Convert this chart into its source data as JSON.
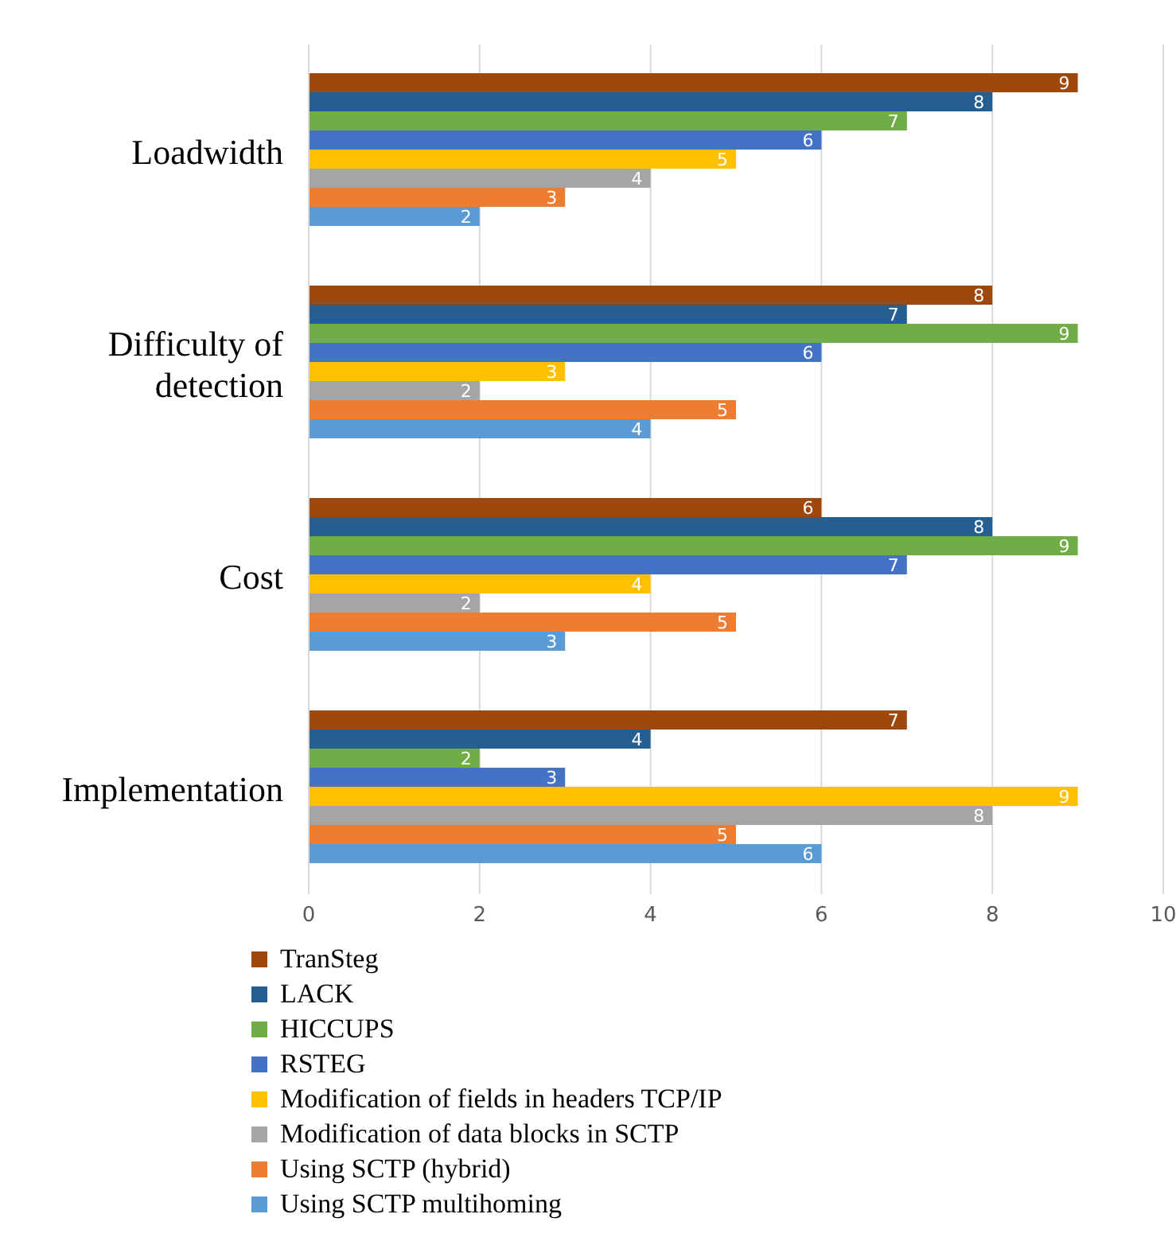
{
  "chart_data": {
    "type": "bar",
    "orientation": "horizontal",
    "categories": [
      "Loadwidth",
      "Difficulty of detection",
      "Cost",
      "Implementation"
    ],
    "series": [
      {
        "name": "TranSteg",
        "color": "#9e480e",
        "values": [
          9,
          8,
          6,
          7
        ]
      },
      {
        "name": "LACK",
        "color": "#255e91",
        "values": [
          8,
          7,
          8,
          4
        ]
      },
      {
        "name": "HICCUPS",
        "color": "#70ad47",
        "values": [
          7,
          9,
          9,
          2
        ]
      },
      {
        "name": "RSTEG",
        "color": "#4472c4",
        "values": [
          6,
          6,
          7,
          3
        ]
      },
      {
        "name": "Modification of fields in headers TCP/IP",
        "color": "#ffc000",
        "values": [
          5,
          3,
          4,
          9
        ]
      },
      {
        "name": "Modification of data blocks in SCTP",
        "color": "#a5a5a5",
        "values": [
          4,
          2,
          2,
          8
        ]
      },
      {
        "name": "Using SCTP (hybrid)",
        "color": "#ed7d31",
        "values": [
          3,
          5,
          5,
          5
        ]
      },
      {
        "name": "Using SCTP multihoming",
        "color": "#5b9bd5",
        "values": [
          2,
          4,
          3,
          6
        ]
      }
    ],
    "xlim": [
      0,
      10
    ],
    "xticks": [
      0,
      2,
      4,
      6,
      8,
      10
    ],
    "grid": "x",
    "legend": "bottom",
    "data_labels": true
  }
}
